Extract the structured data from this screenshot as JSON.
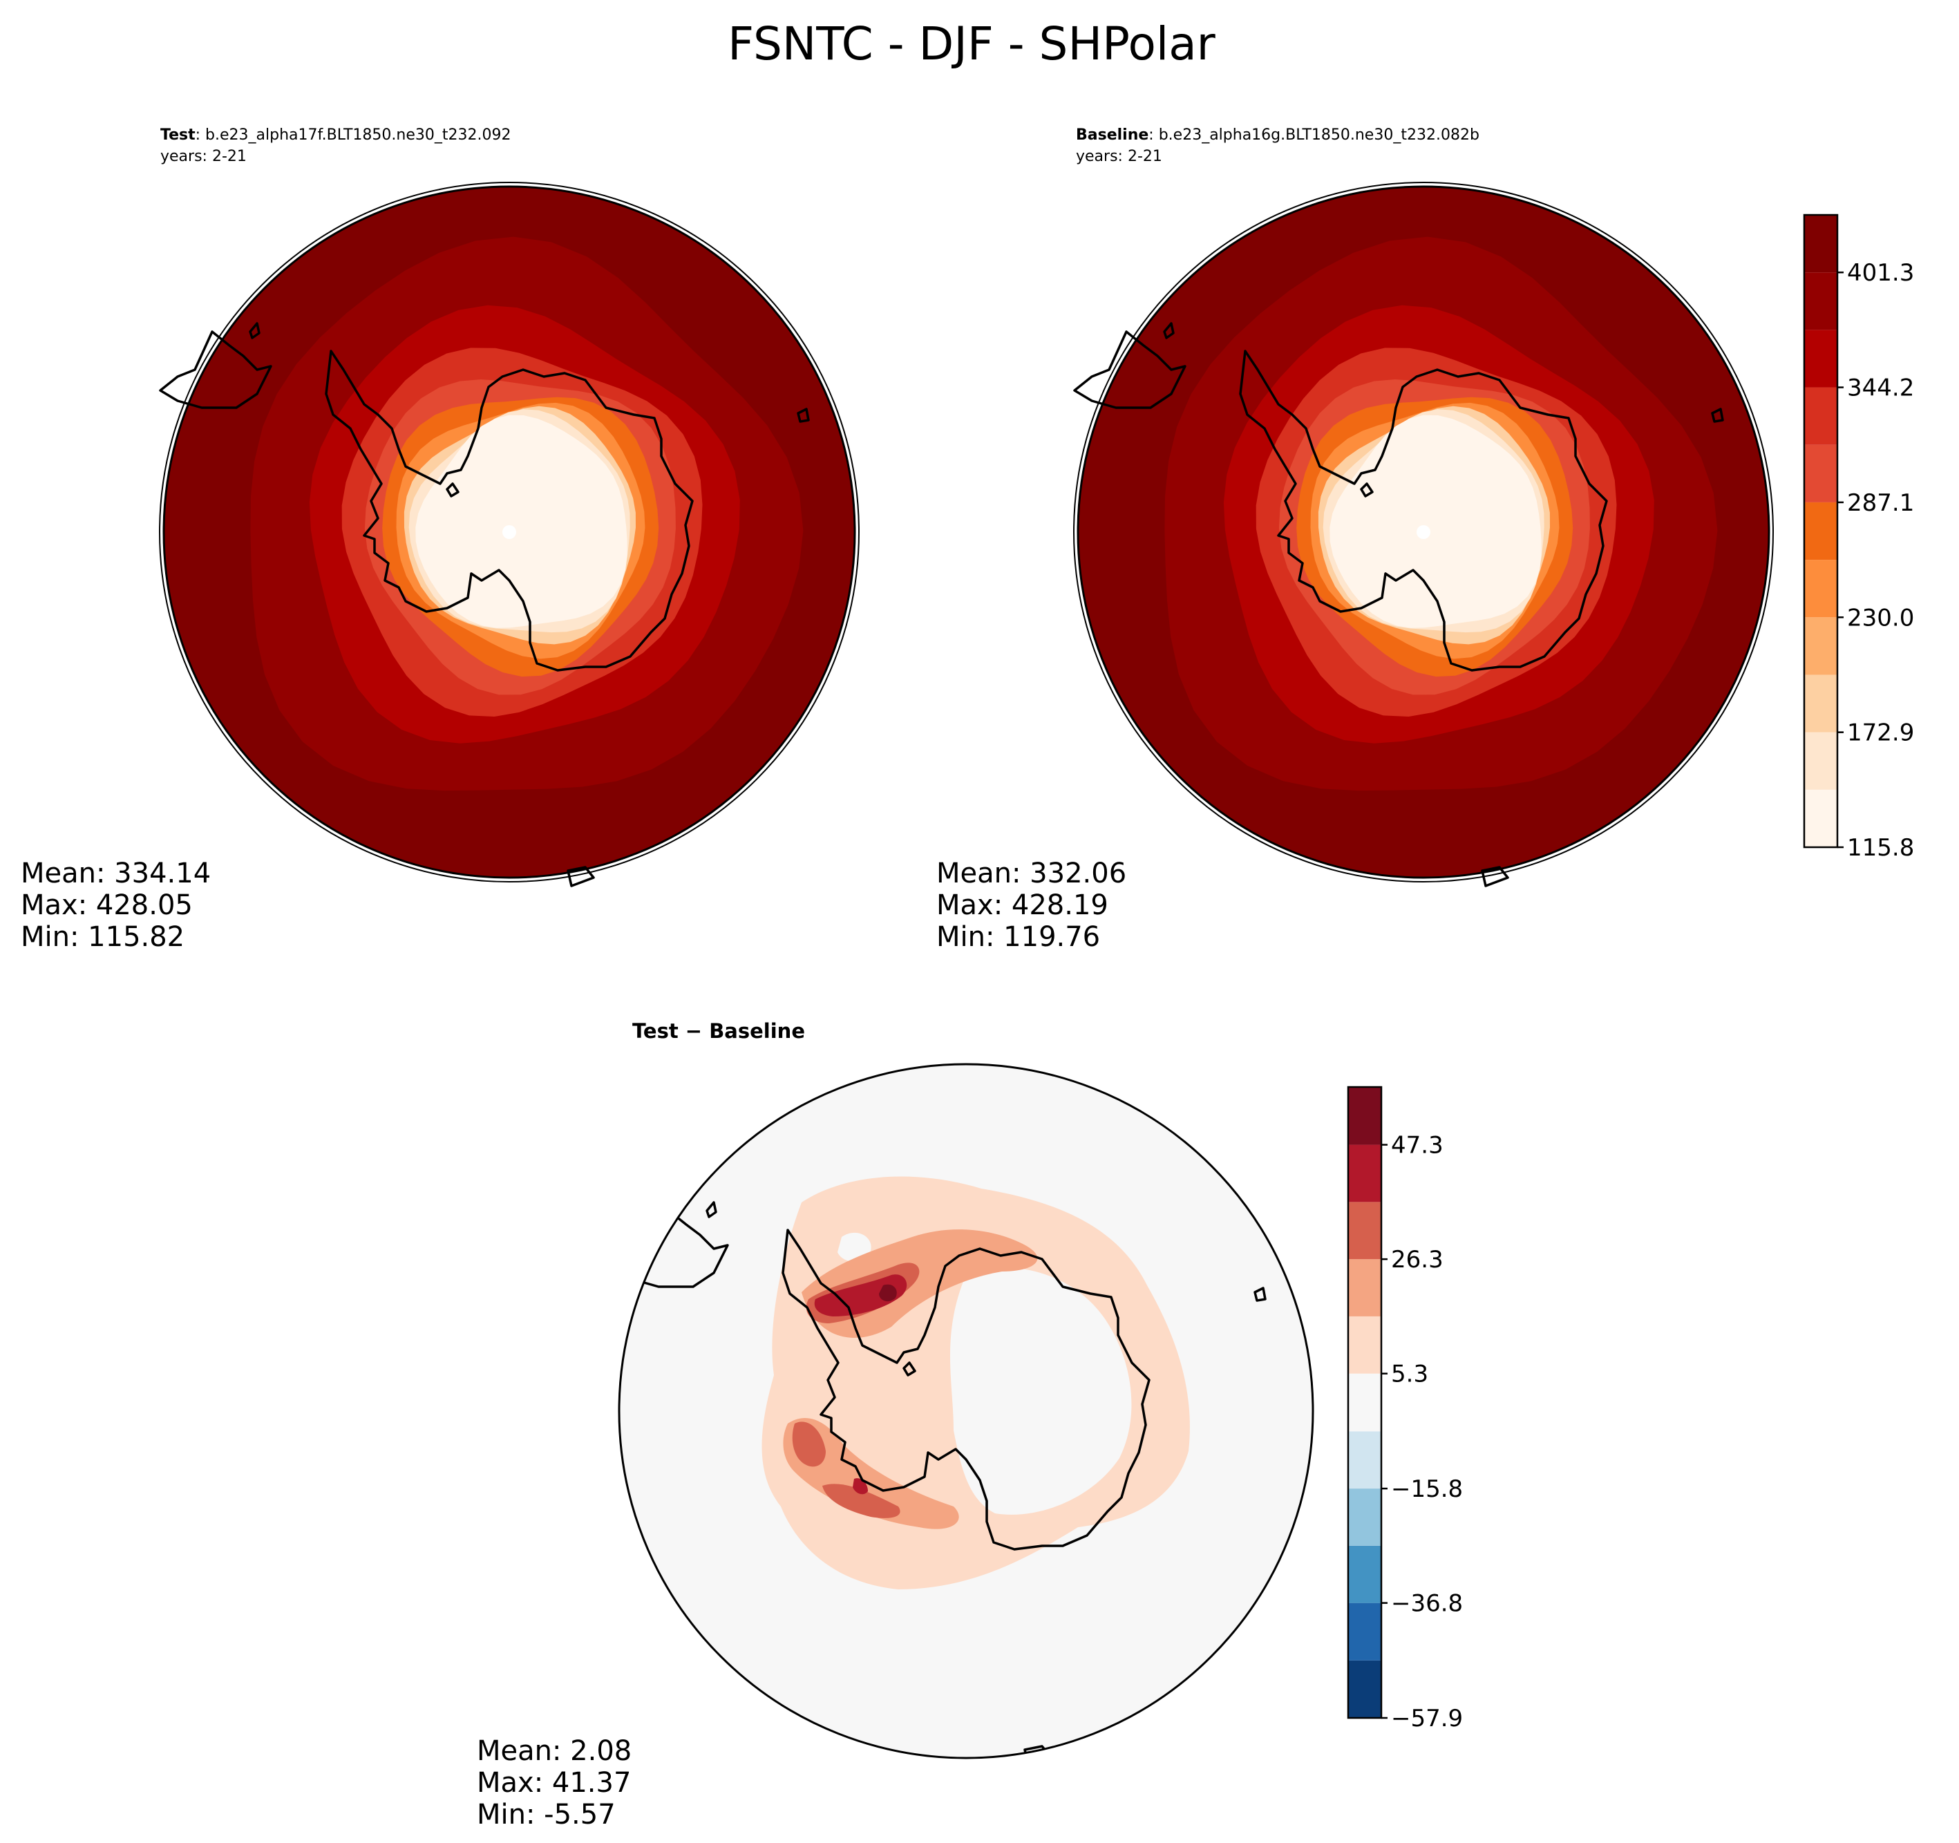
{
  "chart_data": {
    "type": "heatmap",
    "title": "FSNTC - DJF - SHPolar",
    "panels": [
      {
        "id": "test",
        "label_bold": "Test",
        "label_rest": ": b.e23_alpha17f.BLT1850.ne30_t232.092",
        "years": "years: 2-21",
        "stats": {
          "mean": "Mean: 334.14",
          "max": "Max: 428.05",
          "min": "Min: 115.82"
        },
        "ring_values": [
          420,
          390,
          360,
          330,
          300,
          270,
          240,
          200,
          170,
          130
        ]
      },
      {
        "id": "baseline",
        "label_bold": "Baseline",
        "label_rest": ": b.e23_alpha16g.BLT1850.ne30_t232.082b",
        "years": "years: 2-21",
        "stats": {
          "mean": "Mean: 332.06",
          "max": "Max: 428.19",
          "min": "Min: 119.76"
        },
        "ring_values": [
          420,
          390,
          360,
          330,
          300,
          270,
          240,
          200,
          170,
          135
        ]
      },
      {
        "id": "difference",
        "title": "Test − Baseline",
        "stats": {
          "mean": "Mean:  2.08",
          "max": "Max: 41.37",
          "min": "Min: -5.57"
        }
      }
    ],
    "colorbar_main": {
      "levels": [
        115.8,
        144.35,
        172.9,
        201.45,
        230.0,
        258.55,
        287.1,
        315.65,
        344.2,
        372.75,
        401.3,
        429.85
      ],
      "colors": [
        "#fff5eb",
        "#fee6ce",
        "#fdd0a2",
        "#fdae6b",
        "#fd8d3c",
        "#f16913",
        "#e34a33",
        "#d7301f",
        "#b30000",
        "#930000",
        "#7f0000"
      ],
      "tick_labels": [
        "115.8",
        "172.9",
        "230.0",
        "287.1",
        "344.2",
        "401.3"
      ]
    },
    "colorbar_diff": {
      "levels": [
        -57.9,
        -47.35,
        -36.8,
        -26.3,
        -15.8,
        -5.3,
        5.3,
        15.8,
        26.3,
        36.8,
        47.3,
        57.9
      ],
      "colors": [
        "#0b3d78",
        "#2166ac",
        "#4393c3",
        "#92c5de",
        "#d1e5f0",
        "#f7f7f7",
        "#fddbc7",
        "#f4a582",
        "#d6604d",
        "#b2182b",
        "#7a0c1e"
      ],
      "tick_labels": [
        "−57.9",
        "−36.8",
        "−15.8",
        "5.3",
        "26.3",
        "47.3"
      ]
    }
  }
}
